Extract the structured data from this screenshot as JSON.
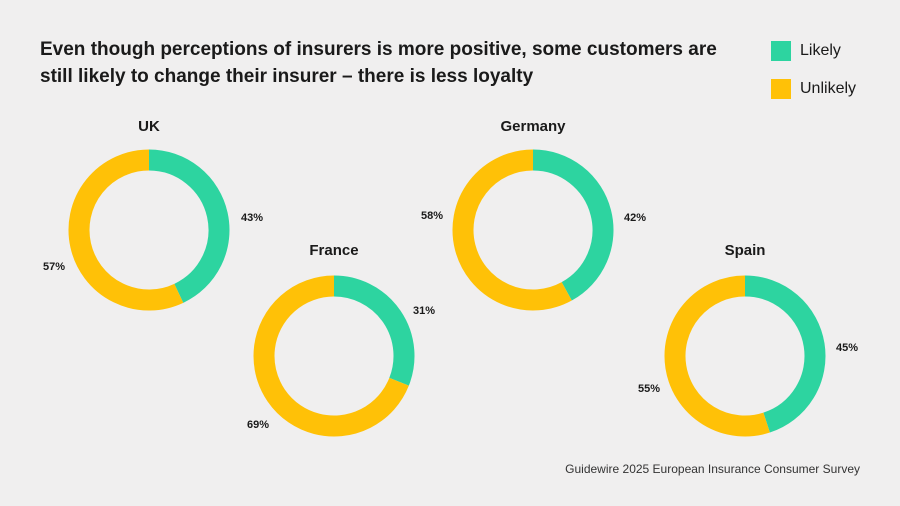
{
  "title": "Even though perceptions of insurers is more positive, some customers are still likely to change their insurer – there is less loyalty",
  "source": "Guidewire 2025 European Insurance Consumer Survey",
  "colors": {
    "likely": "#2DD4A0",
    "unlikely": "#FFC107",
    "hole": "#F0EFEF"
  },
  "legend": [
    {
      "label": "Likely",
      "color": "#2DD4A0"
    },
    {
      "label": "Unlikely",
      "color": "#FFC107"
    }
  ],
  "chart_data": [
    {
      "type": "pie",
      "title": "UK",
      "categories": [
        "Likely",
        "Unlikely"
      ],
      "values": [
        43,
        57
      ],
      "labels": [
        "43%",
        "57%"
      ]
    },
    {
      "type": "pie",
      "title": "France",
      "categories": [
        "Likely",
        "Unlikely"
      ],
      "values": [
        31,
        69
      ],
      "labels": [
        "31%",
        "69%"
      ]
    },
    {
      "type": "pie",
      "title": "Germany",
      "categories": [
        "Likely",
        "Unlikely"
      ],
      "values": [
        42,
        58
      ],
      "labels": [
        "42%",
        "58%"
      ]
    },
    {
      "type": "pie",
      "title": "Spain",
      "categories": [
        "Likely",
        "Unlikely"
      ],
      "values": [
        45,
        55
      ],
      "labels": [
        "45%",
        "55%"
      ]
    }
  ]
}
